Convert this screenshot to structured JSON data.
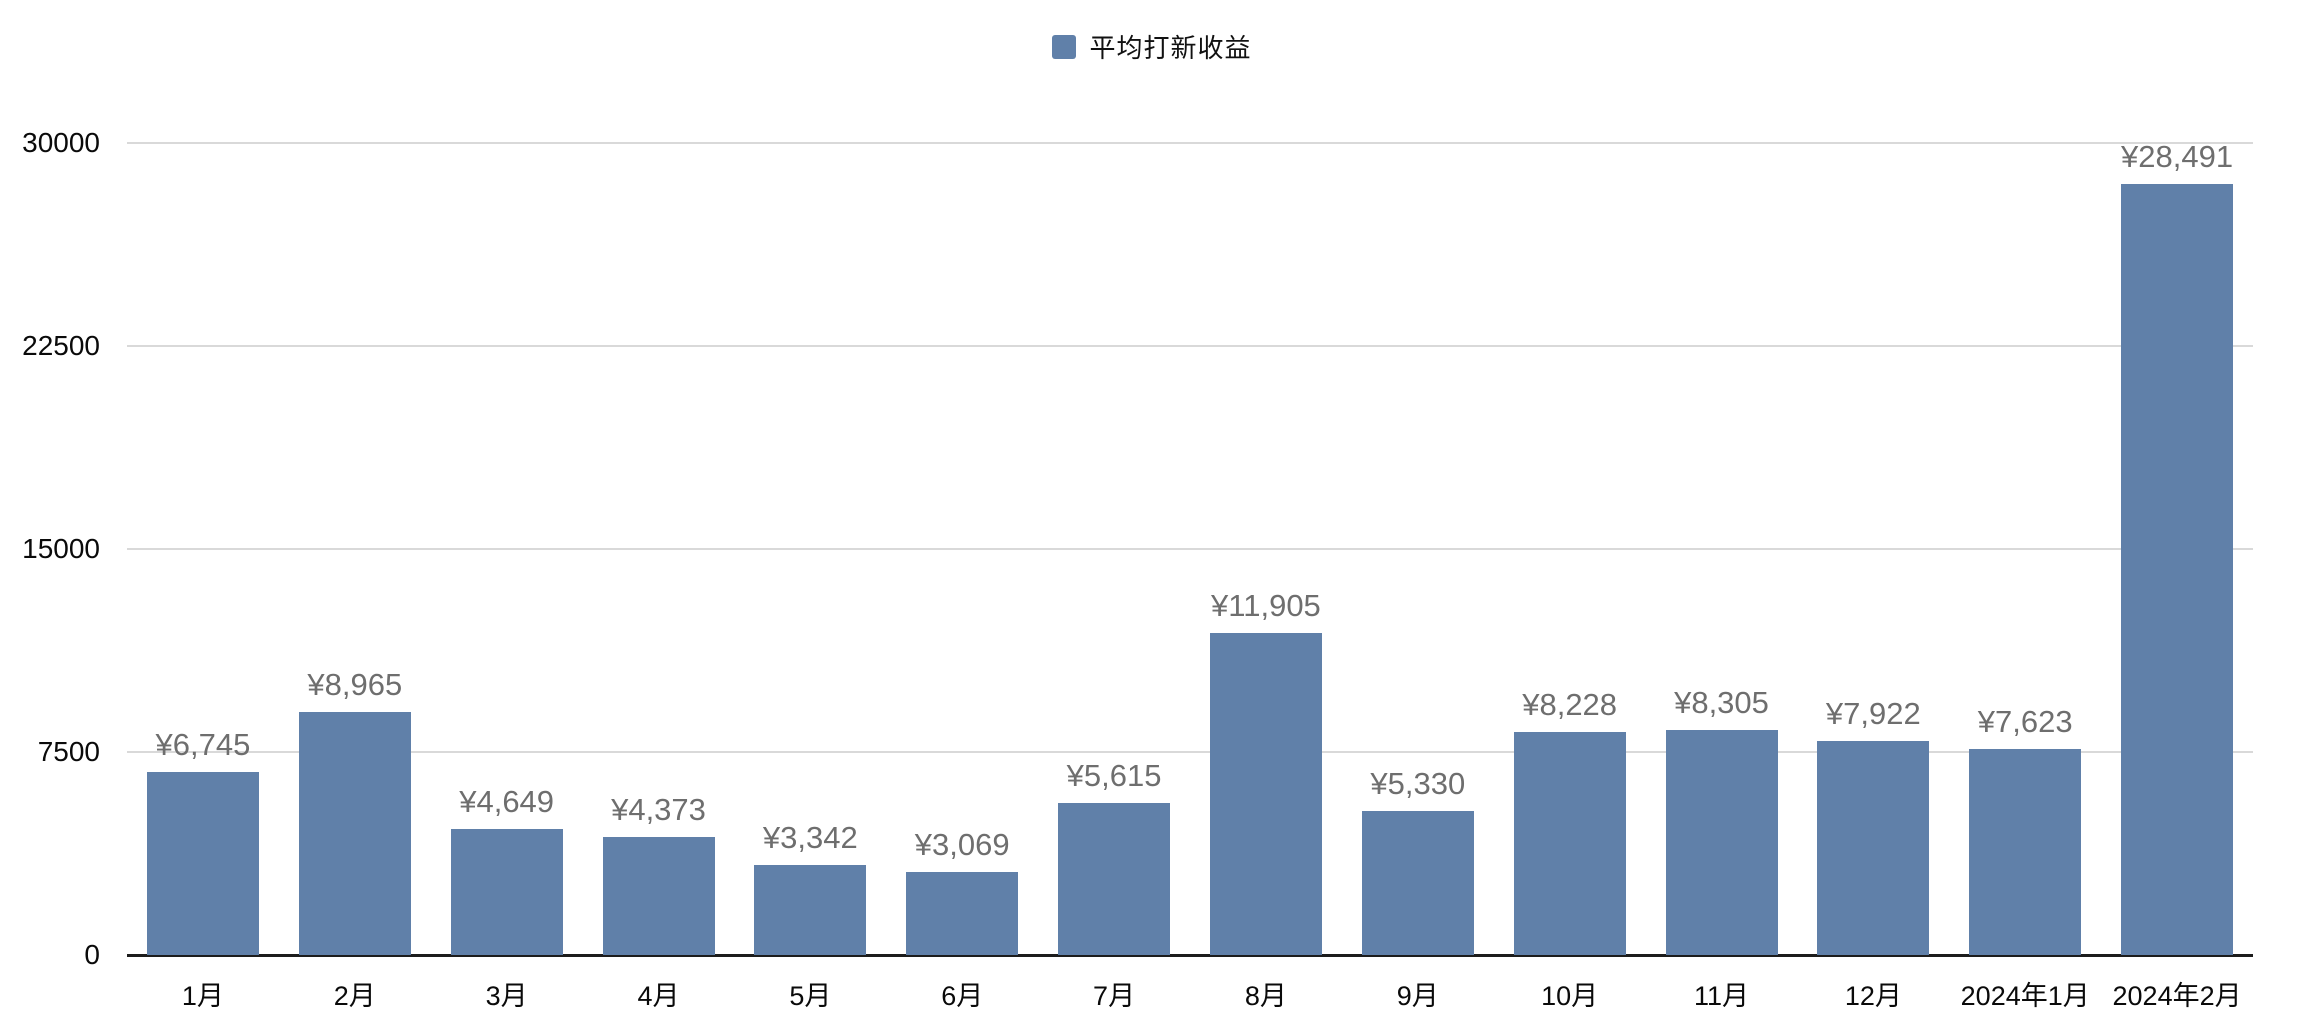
{
  "colors": {
    "bar_fill": "#6080a9",
    "gridline": "#d9d9d9",
    "axis_line": "#1c1c1c",
    "value_label": "#6e6e6e",
    "tick_label": "#0a0a0a",
    "background": "#ffffff"
  },
  "legend": {
    "label": "平均打新收益"
  },
  "chart_data": {
    "type": "bar",
    "title": "",
    "series_name": "平均打新收益",
    "legend_entries": [
      "平均打新收益"
    ],
    "legend_position": "top-center",
    "grid": true,
    "categories": [
      "1月",
      "2月",
      "3月",
      "4月",
      "5月",
      "6月",
      "7月",
      "8月",
      "9月",
      "10月",
      "11月",
      "12月",
      "2024年1月",
      "2024年2月"
    ],
    "values": [
      6745,
      8965,
      4649,
      4373,
      3342,
      3069,
      5615,
      11905,
      5330,
      8228,
      8305,
      7922,
      7623,
      28491
    ],
    "value_labels": [
      "¥6,745",
      "¥8,965",
      "¥4,649",
      "¥4,373",
      "¥3,342",
      "¥3,069",
      "¥5,615",
      "¥11,905",
      "¥5,330",
      "¥8,228",
      "¥8,305",
      "¥7,922",
      "¥7,623",
      "¥28,491"
    ],
    "xlabel": "",
    "ylabel": "",
    "ylim": [
      0,
      30000
    ],
    "yticks": [
      0,
      7500,
      15000,
      22500,
      30000
    ],
    "ytick_labels": [
      "0",
      "7500",
      "15000",
      "22500",
      "30000"
    ]
  }
}
